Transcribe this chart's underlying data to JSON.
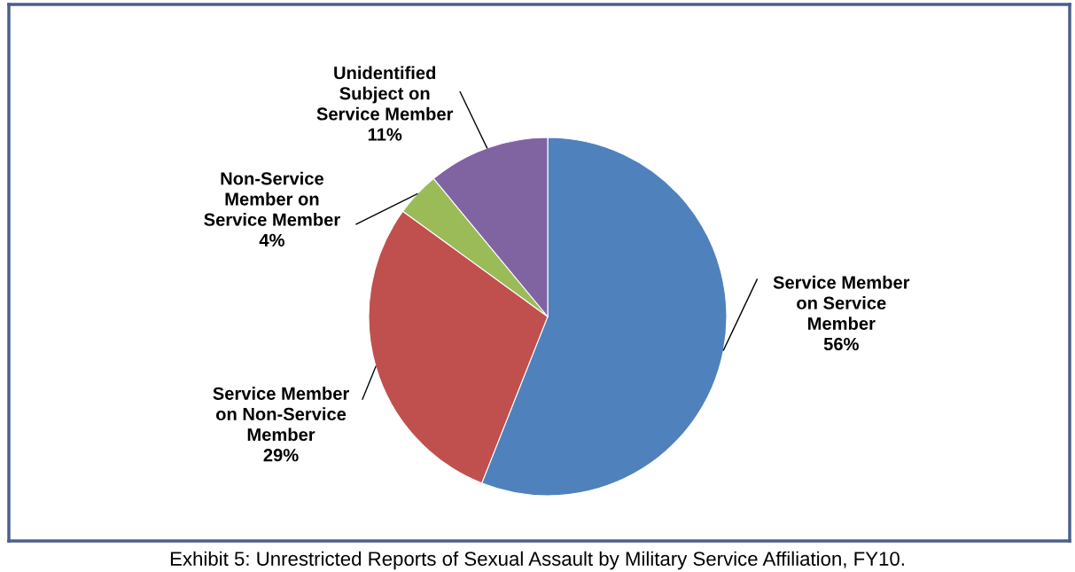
{
  "chart_data": {
    "type": "pie",
    "categories": [
      "Service Member\non Service\nMember",
      "Service Member\non Non-Service\nMember",
      "Non-Service\nMember on\nService Member",
      "Unidentified\nSubject on\nService Member"
    ],
    "values": [
      56,
      29,
      4,
      11
    ],
    "colors": [
      "#4f81bd",
      "#c0504d",
      "#9bbb59",
      "#8064a2"
    ],
    "value_labels": [
      "56%",
      "29%",
      "4%",
      "11%"
    ],
    "legend": false,
    "annotations": [
      "Exhibit 5: Unrestricted Reports of Sexual Assault by Military Service Affiliation, FY10."
    ]
  }
}
